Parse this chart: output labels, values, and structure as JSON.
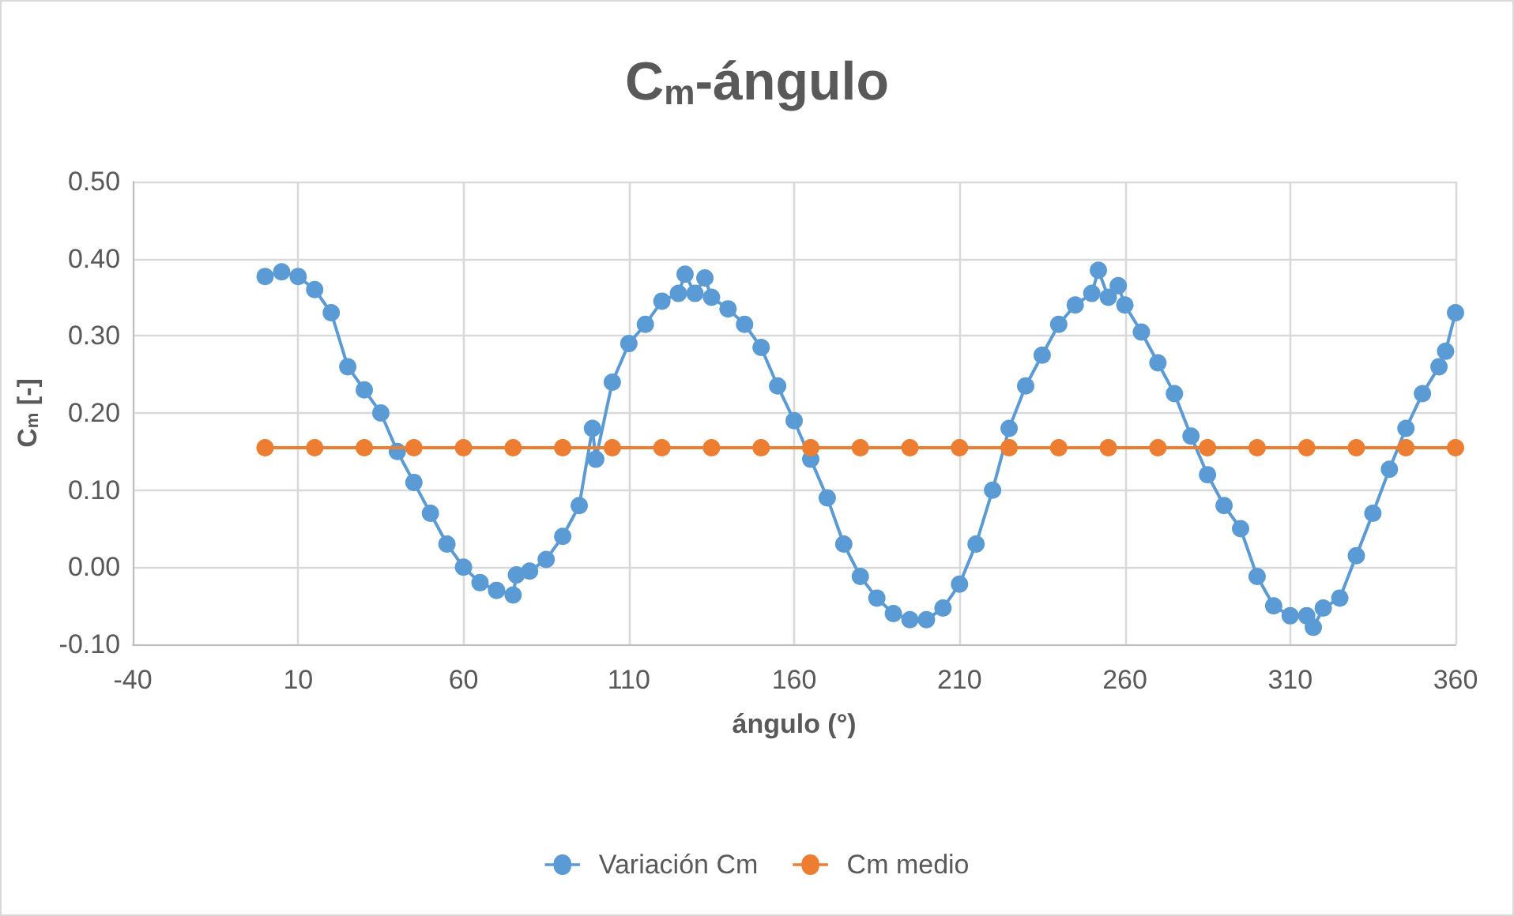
{
  "chart_data": {
    "type": "line",
    "title": "C$_{m}$-ángulo",
    "xlabel": "ángulo (°)",
    "ylabel": "C$_{m}$ [-]",
    "xlim": [
      -40,
      360
    ],
    "xticks": [
      -40,
      10,
      60,
      110,
      160,
      210,
      260,
      310,
      360
    ],
    "ylim": [
      -0.1,
      0.5
    ],
    "yticks": [
      {
        "value": -0.1,
        "label": "-0.10"
      },
      {
        "value": 0,
        "label": "0.00"
      },
      {
        "value": 0.1,
        "label": "0.10"
      },
      {
        "value": 0.2,
        "label": "0.20"
      },
      {
        "value": 0.3,
        "label": "0.30"
      },
      {
        "value": 0.4,
        "label": "0.40"
      },
      {
        "value": 0.5,
        "label": "0.50"
      }
    ],
    "grid": true,
    "legend": "bottom",
    "marker": "circle",
    "line_style": "solid",
    "series": [
      {
        "name": "Variación Cm",
        "color": "#5b9bd5",
        "x": [
          0,
          5,
          10,
          15,
          20,
          25,
          30,
          35,
          40,
          45,
          50,
          55,
          60,
          65,
          70,
          75,
          76,
          80,
          85,
          90,
          95,
          99,
          100,
          105,
          110,
          115,
          120,
          125,
          127,
          130,
          133,
          135,
          140,
          145,
          150,
          155,
          160,
          165,
          170,
          175,
          180,
          185,
          190,
          195,
          200,
          205,
          210,
          215,
          220,
          225,
          230,
          235,
          240,
          245,
          250,
          252,
          255,
          258,
          260,
          265,
          270,
          275,
          280,
          285,
          290,
          295,
          300,
          305,
          310,
          315,
          317,
          320,
          325,
          330,
          335,
          340,
          345,
          350,
          355,
          357,
          360
        ],
        "values": [
          0.377,
          0.383,
          0.377,
          0.36,
          0.33,
          0.26,
          0.23,
          0.2,
          0.15,
          0.11,
          0.07,
          0.03,
          0.0,
          -0.02,
          -0.03,
          -0.036,
          -0.01,
          -0.005,
          0.01,
          0.04,
          0.08,
          0.18,
          0.14,
          0.24,
          0.29,
          0.315,
          0.345,
          0.355,
          0.38,
          0.355,
          0.375,
          0.35,
          0.335,
          0.315,
          0.285,
          0.235,
          0.19,
          0.14,
          0.09,
          0.03,
          -0.012,
          -0.04,
          -0.06,
          -0.068,
          -0.068,
          -0.053,
          -0.022,
          0.03,
          0.1,
          0.18,
          0.235,
          0.275,
          0.315,
          0.34,
          0.355,
          0.385,
          0.35,
          0.365,
          0.34,
          0.305,
          0.265,
          0.225,
          0.17,
          0.12,
          0.08,
          0.05,
          -0.012,
          -0.05,
          -0.063,
          -0.063,
          -0.078,
          -0.053,
          -0.04,
          0.015,
          0.07,
          0.127,
          0.18,
          0.225,
          0.26,
          0.28,
          0.33
        ]
      },
      {
        "name": "Cm medio",
        "color": "#ed7d31",
        "x": [
          0,
          15,
          30,
          45,
          60,
          75,
          90,
          105,
          120,
          135,
          150,
          165,
          180,
          195,
          210,
          225,
          240,
          255,
          270,
          285,
          300,
          315,
          330,
          345,
          360
        ],
        "values": [
          0.155,
          0.155,
          0.155,
          0.155,
          0.155,
          0.155,
          0.155,
          0.155,
          0.155,
          0.155,
          0.155,
          0.155,
          0.155,
          0.155,
          0.155,
          0.155,
          0.155,
          0.155,
          0.155,
          0.155,
          0.155,
          0.155,
          0.155,
          0.155,
          0.155
        ]
      }
    ]
  }
}
